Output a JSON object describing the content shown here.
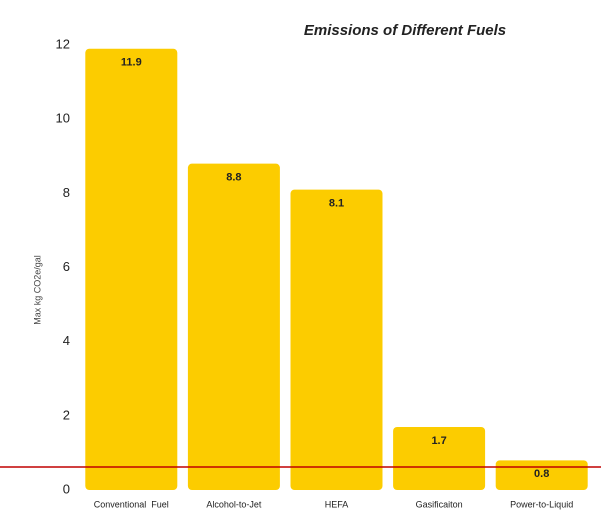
{
  "chart_data": {
    "type": "bar",
    "title": "Emissions of Different Fuels",
    "y_label": "Max kg CO2e/gal",
    "categories": [
      "Conventional  Fuel",
      "Alcohol-to-Jet",
      "HEFA",
      "Gasificaiton",
      "Power-to-Liquid"
    ],
    "values": [
      11.9,
      8.8,
      8.1,
      1.7,
      0.8
    ],
    "color": "#fccc00",
    "ylim": [
      0,
      12
    ],
    "yticks": [
      0,
      2,
      4,
      6,
      8,
      10,
      12
    ],
    "grid": false
  }
}
